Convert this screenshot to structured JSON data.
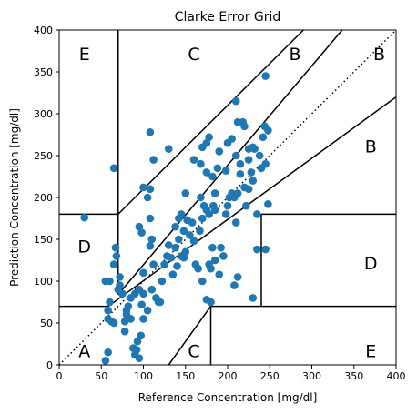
{
  "chart_data": {
    "type": "scatter",
    "title": "Clarke Error Grid",
    "xlabel": "Reference Concentration [mg/dl]",
    "ylabel": "Prediction Concentration [mg/dl]",
    "xlim": [
      0,
      400
    ],
    "ylim": [
      0,
      400
    ],
    "xticks": [
      0,
      50,
      100,
      150,
      200,
      250,
      300,
      350,
      400
    ],
    "yticks": [
      0,
      50,
      100,
      150,
      200,
      250,
      300,
      350,
      400
    ],
    "grid": false,
    "marker_color": "#1f77b4",
    "line_color": "#000000",
    "points": [
      [
        55,
        5
      ],
      [
        58,
        15
      ],
      [
        62,
        52
      ],
      [
        58,
        55
      ],
      [
        65,
        50
      ],
      [
        88,
        20
      ],
      [
        90,
        12
      ],
      [
        92,
        18
      ],
      [
        93,
        28
      ],
      [
        95,
        8
      ],
      [
        97,
        35
      ],
      [
        100,
        55
      ],
      [
        98,
        72
      ],
      [
        105,
        65
      ],
      [
        90,
        85
      ],
      [
        85,
        55
      ],
      [
        78,
        52
      ],
      [
        78,
        40
      ],
      [
        80,
        60
      ],
      [
        60,
        100
      ],
      [
        55,
        100
      ],
      [
        60,
        75
      ],
      [
        58,
        65
      ],
      [
        65,
        120
      ],
      [
        68,
        130
      ],
      [
        67,
        140
      ],
      [
        72,
        105
      ],
      [
        75,
        85
      ],
      [
        80,
        65
      ],
      [
        82,
        70
      ],
      [
        70,
        90
      ],
      [
        72,
        95
      ],
      [
        85,
        80
      ],
      [
        100,
        110
      ],
      [
        95,
        90
      ],
      [
        100,
        85
      ],
      [
        110,
        90
      ],
      [
        115,
        80
      ],
      [
        118,
        75
      ],
      [
        120,
        75
      ],
      [
        122,
        100
      ],
      [
        125,
        120
      ],
      [
        128,
        130
      ],
      [
        130,
        143
      ],
      [
        133,
        128
      ],
      [
        135,
        108
      ],
      [
        138,
        140
      ],
      [
        140,
        118
      ],
      [
        142,
        150
      ],
      [
        145,
        130
      ],
      [
        148,
        128
      ],
      [
        150,
        135
      ],
      [
        148,
        160
      ],
      [
        152,
        173
      ],
      [
        155,
        155
      ],
      [
        158,
        170
      ],
      [
        160,
        148
      ],
      [
        162,
        120
      ],
      [
        165,
        115
      ],
      [
        167,
        160
      ],
      [
        170,
        175
      ],
      [
        168,
        200
      ],
      [
        172,
        190
      ],
      [
        175,
        185
      ],
      [
        178,
        120
      ],
      [
        180,
        115
      ],
      [
        183,
        190
      ],
      [
        185,
        205
      ],
      [
        185,
        185
      ],
      [
        182,
        140
      ],
      [
        178,
        180
      ],
      [
        170,
        100
      ],
      [
        175,
        78
      ],
      [
        180,
        75
      ],
      [
        185,
        125
      ],
      [
        190,
        108
      ],
      [
        192,
        140
      ],
      [
        195,
        130
      ],
      [
        198,
        180
      ],
      [
        200,
        190
      ],
      [
        202,
        200
      ],
      [
        205,
        205
      ],
      [
        208,
        200
      ],
      [
        210,
        170
      ],
      [
        212,
        205
      ],
      [
        215,
        228
      ],
      [
        220,
        212
      ],
      [
        222,
        190
      ],
      [
        225,
        210
      ],
      [
        228,
        230
      ],
      [
        230,
        220
      ],
      [
        232,
        258
      ],
      [
        235,
        180
      ],
      [
        238,
        250
      ],
      [
        240,
        235
      ],
      [
        242,
        272
      ],
      [
        244,
        285
      ],
      [
        245,
        345
      ],
      [
        248,
        280
      ],
      [
        245,
        240
      ],
      [
        248,
        192
      ],
      [
        245,
        138
      ],
      [
        235,
        138
      ],
      [
        230,
        80
      ],
      [
        212,
        105
      ],
      [
        208,
        95
      ],
      [
        210,
        315
      ],
      [
        212,
        290
      ],
      [
        218,
        290
      ],
      [
        220,
        285
      ],
      [
        225,
        258
      ],
      [
        230,
        260
      ],
      [
        225,
        245
      ],
      [
        215,
        240
      ],
      [
        210,
        250
      ],
      [
        205,
        270
      ],
      [
        200,
        265
      ],
      [
        198,
        232
      ],
      [
        190,
        255
      ],
      [
        188,
        235
      ],
      [
        182,
        225
      ],
      [
        175,
        230
      ],
      [
        178,
        272
      ],
      [
        175,
        265
      ],
      [
        170,
        260
      ],
      [
        168,
        240
      ],
      [
        160,
        245
      ],
      [
        150,
        205
      ],
      [
        145,
        180
      ],
      [
        142,
        175
      ],
      [
        138,
        165
      ],
      [
        130,
        258
      ],
      [
        112,
        245
      ],
      [
        108,
        210
      ],
      [
        100,
        212
      ],
      [
        105,
        200
      ],
      [
        110,
        150
      ],
      [
        98,
        158
      ],
      [
        108,
        278
      ],
      [
        65,
        235
      ],
      [
        30,
        176
      ],
      [
        108,
        175
      ],
      [
        95,
        165
      ],
      [
        108,
        142
      ],
      [
        112,
        120
      ]
    ],
    "zone_labels": [
      {
        "text": "A",
        "x": 30,
        "y": 15
      },
      {
        "text": "B",
        "x": 370,
        "y": 260
      },
      {
        "text": "B",
        "x": 280,
        "y": 370
      },
      {
        "text": "B",
        "x": 380,
        "y": 370
      },
      {
        "text": "C",
        "x": 160,
        "y": 370
      },
      {
        "text": "C",
        "x": 160,
        "y": 15
      },
      {
        "text": "D",
        "x": 30,
        "y": 140
      },
      {
        "text": "D",
        "x": 370,
        "y": 120
      },
      {
        "text": "E",
        "x": 30,
        "y": 370
      },
      {
        "text": "E",
        "x": 370,
        "y": 15
      }
    ],
    "zone_lines": [
      {
        "style": "dotted",
        "points": [
          [
            0,
            0
          ],
          [
            400,
            400
          ]
        ]
      },
      {
        "style": "solid",
        "points": [
          [
            0,
            70
          ],
          [
            58.3333,
            70
          ]
        ]
      },
      {
        "style": "solid",
        "points": [
          [
            58.3333,
            70
          ],
          [
            400,
            320
          ]
        ]
      },
      {
        "style": "solid",
        "points": [
          [
            70,
            84
          ],
          [
            70,
            400
          ]
        ]
      },
      {
        "style": "solid",
        "points": [
          [
            70,
            84
          ],
          [
            336,
            400
          ]
        ]
      },
      {
        "style": "solid",
        "points": [
          [
            0,
            180
          ],
          [
            70,
            180
          ]
        ]
      },
      {
        "style": "solid",
        "points": [
          [
            70,
            180
          ],
          [
            290,
            400
          ]
        ]
      },
      {
        "style": "solid",
        "points": [
          [
            130,
            0
          ],
          [
            180,
            70
          ]
        ]
      },
      {
        "style": "solid",
        "points": [
          [
            180,
            70
          ],
          [
            400,
            70
          ]
        ]
      },
      {
        "style": "solid",
        "points": [
          [
            180,
            0
          ],
          [
            180,
            70
          ]
        ]
      },
      {
        "style": "solid",
        "points": [
          [
            240,
            70
          ],
          [
            240,
            180
          ]
        ]
      },
      {
        "style": "solid",
        "points": [
          [
            240,
            180
          ],
          [
            400,
            180
          ]
        ]
      },
      {
        "style": "solid",
        "points": [
          [
            130,
            0
          ],
          [
            130,
            0
          ]
        ]
      }
    ]
  }
}
